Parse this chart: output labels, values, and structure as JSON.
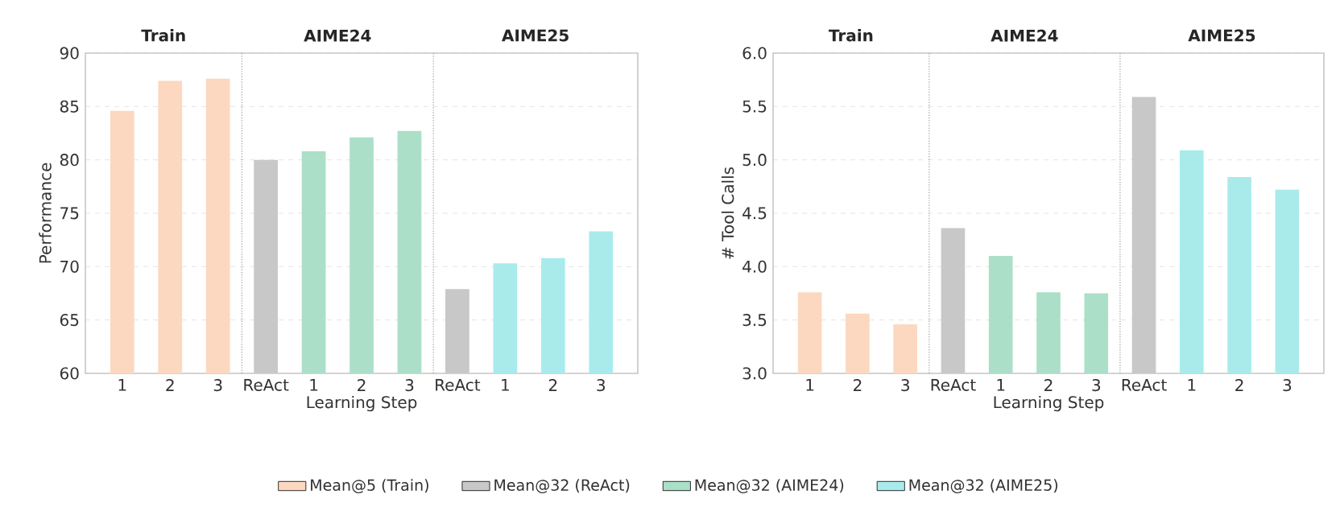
{
  "chart_data": [
    {
      "type": "bar",
      "xlabel": "Learning Step",
      "ylabel": "Performance",
      "ylim": [
        60,
        90
      ],
      "yticks": [
        60,
        65,
        70,
        75,
        80,
        85,
        90
      ],
      "categories": [
        "1",
        "2",
        "3",
        "ReAct",
        "1",
        "2",
        "3",
        "ReAct",
        "1",
        "2",
        "3"
      ],
      "series": [
        {
          "name": "Mean@5 (Train)",
          "color": "#fcd8c0",
          "values": [
            84.6,
            87.4,
            87.6,
            null,
            null,
            null,
            null,
            null,
            null,
            null,
            null
          ]
        },
        {
          "name": "Mean@32 (ReAct)",
          "color": "#c8c8c8",
          "values": [
            null,
            null,
            null,
            80.0,
            null,
            null,
            null,
            67.9,
            null,
            null,
            null
          ]
        },
        {
          "name": "Mean@32 (AIME24)",
          "color": "#abdfc8",
          "values": [
            null,
            null,
            null,
            null,
            80.8,
            82.1,
            82.7,
            null,
            null,
            null,
            null
          ]
        },
        {
          "name": "Mean@32 (AIME25)",
          "color": "#a9ebeb",
          "values": [
            null,
            null,
            null,
            null,
            null,
            null,
            null,
            null,
            70.3,
            70.8,
            73.3
          ]
        }
      ],
      "annotations": [
        "Train",
        "AIME24",
        "AIME25"
      ],
      "grid": "y",
      "legend": "bottom"
    },
    {
      "type": "bar",
      "xlabel": "Learning Step",
      "ylabel": "# Tool Calls",
      "ylim": [
        3.0,
        6.0
      ],
      "yticks": [
        {
          "value": 3,
          "label": "3.0"
        },
        {
          "value": 3.5,
          "label": "3.5"
        },
        {
          "value": 4,
          "label": "4.0"
        },
        {
          "value": 4.5,
          "label": "4.5"
        },
        {
          "value": 5,
          "label": "5.0"
        },
        {
          "value": 5.5,
          "label": "5.5"
        },
        {
          "value": 6,
          "label": "6.0"
        }
      ],
      "categories": [
        "1",
        "2",
        "3",
        "ReAct",
        "1",
        "2",
        "3",
        "ReAct",
        "1",
        "2",
        "3"
      ],
      "series": [
        {
          "name": "Mean@5 (Train)",
          "color": "#fcd8c0",
          "values": [
            3.76,
            3.56,
            3.46,
            null,
            null,
            null,
            null,
            null,
            null,
            null,
            null
          ]
        },
        {
          "name": "Mean@32 (ReAct)",
          "color": "#c8c8c8",
          "values": [
            null,
            null,
            null,
            4.36,
            null,
            null,
            null,
            5.59,
            null,
            null,
            null
          ]
        },
        {
          "name": "Mean@32 (AIME24)",
          "color": "#abdfc8",
          "values": [
            null,
            null,
            null,
            null,
            4.1,
            3.76,
            3.75,
            null,
            null,
            null,
            null
          ]
        },
        {
          "name": "Mean@32 (AIME25)",
          "color": "#a9ebeb",
          "values": [
            null,
            null,
            null,
            null,
            null,
            null,
            null,
            null,
            5.09,
            4.84,
            4.72
          ]
        }
      ],
      "annotations": [
        "Train",
        "AIME24",
        "AIME25"
      ],
      "grid": "y",
      "legend": "bottom"
    }
  ]
}
